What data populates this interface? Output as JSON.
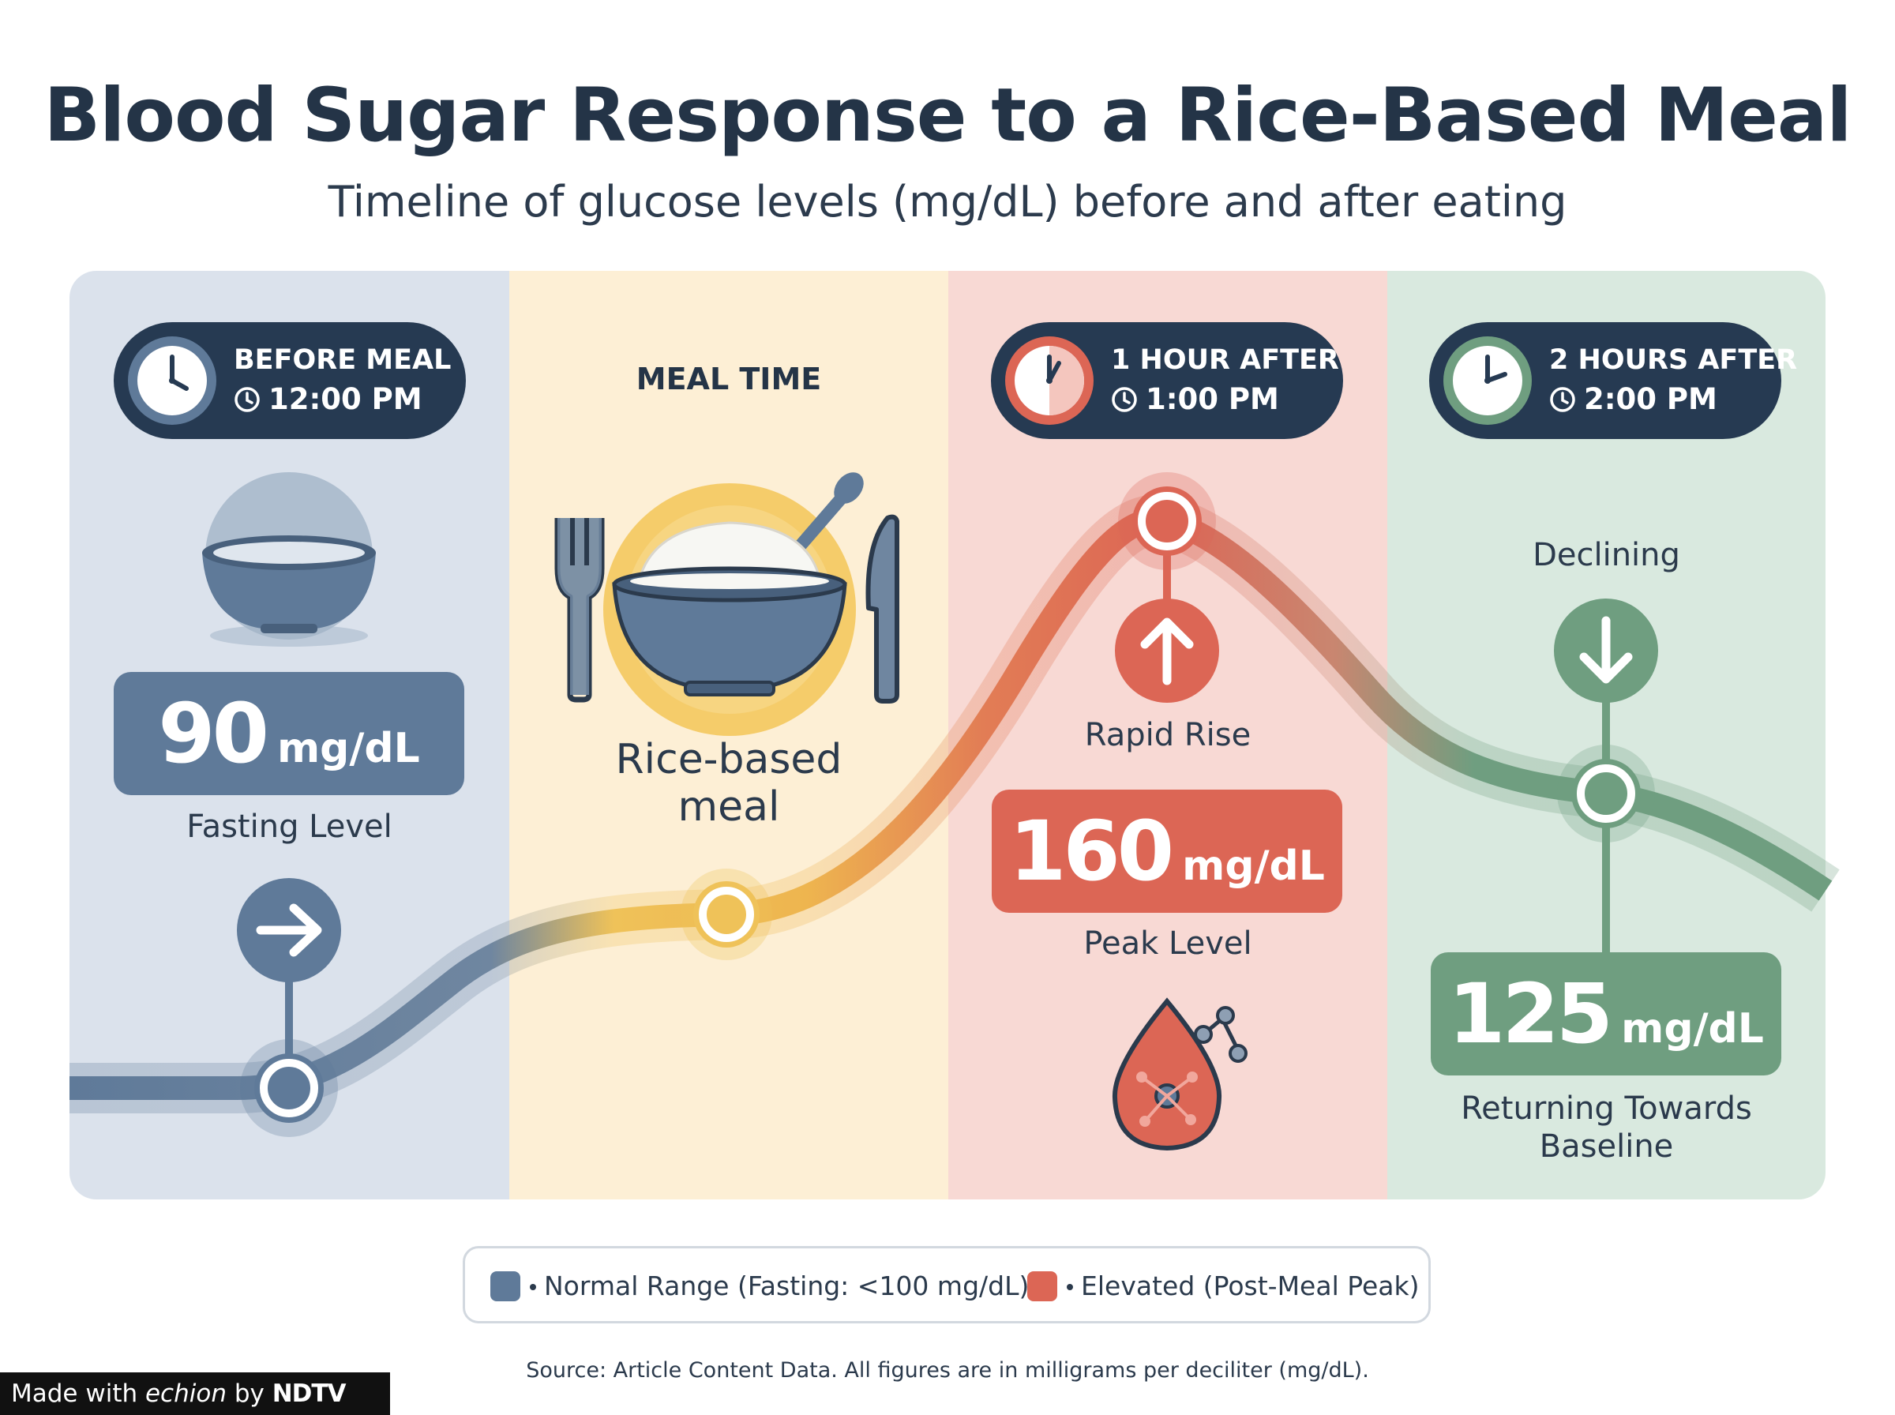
{
  "header": {
    "title": "Blood Sugar Response to a Rice-Based Meal",
    "subtitle": "Timeline of glucose levels (mg/dL) before and after eating"
  },
  "stages": [
    {
      "title": "BEFORE MEAL",
      "time": "12:00 PM",
      "value": "90",
      "unit": "mg/dL",
      "caption": "Fasting Level",
      "color": "#5f7a99",
      "band_color": "#dbe2ec"
    },
    {
      "title": "MEAL TIME",
      "caption": "Rice-based meal",
      "caption_line1": "Rice-based",
      "caption_line2": "meal",
      "color": "#efc259",
      "band_color": "#fdefd5"
    },
    {
      "title": "1 HOUR AFTER",
      "time": "1:00 PM",
      "value": "160",
      "unit": "mg/dL",
      "trend": "Rapid Rise",
      "caption": "Peak Level",
      "color": "#dc6655",
      "band_color": "#f8d9d4"
    },
    {
      "title": "2 HOURS AFTER",
      "time": "2:00 PM",
      "value": "125",
      "unit": "mg/dL",
      "trend": "Declining",
      "caption_line1": "Returning Towards",
      "caption_line2": "Baseline",
      "color": "#6f9e80",
      "band_color": "#d9e9df"
    }
  ],
  "chart_data": {
    "type": "line",
    "x": [
      "12:00 PM",
      "Meal time",
      "1:00 PM",
      "2:00 PM"
    ],
    "series": [
      {
        "values": [
          90,
          null,
          160,
          125
        ]
      }
    ],
    "unit": "mg/dL",
    "grid": false
  },
  "legend": {
    "items": [
      {
        "label": "Normal Range (Fasting: <100 mg/dL)",
        "color": "#5f7a99"
      },
      {
        "label": "Elevated (Post-Meal Peak)",
        "color": "#dc6655"
      }
    ]
  },
  "footer": {
    "source": "Source: Article Content Data. All figures are in milligrams per deciliter (mg/dL).",
    "badge_prefix": "Made with",
    "badge_brand": "echion",
    "badge_by": "by",
    "badge_owner": "NDTV"
  },
  "icons": [
    "clock-icon",
    "empty-bowl-icon",
    "fork-icon",
    "rice-bowl-icon",
    "knife-icon",
    "arrow-right-icon",
    "arrow-up-icon",
    "arrow-down-icon",
    "blood-drop-icon"
  ]
}
